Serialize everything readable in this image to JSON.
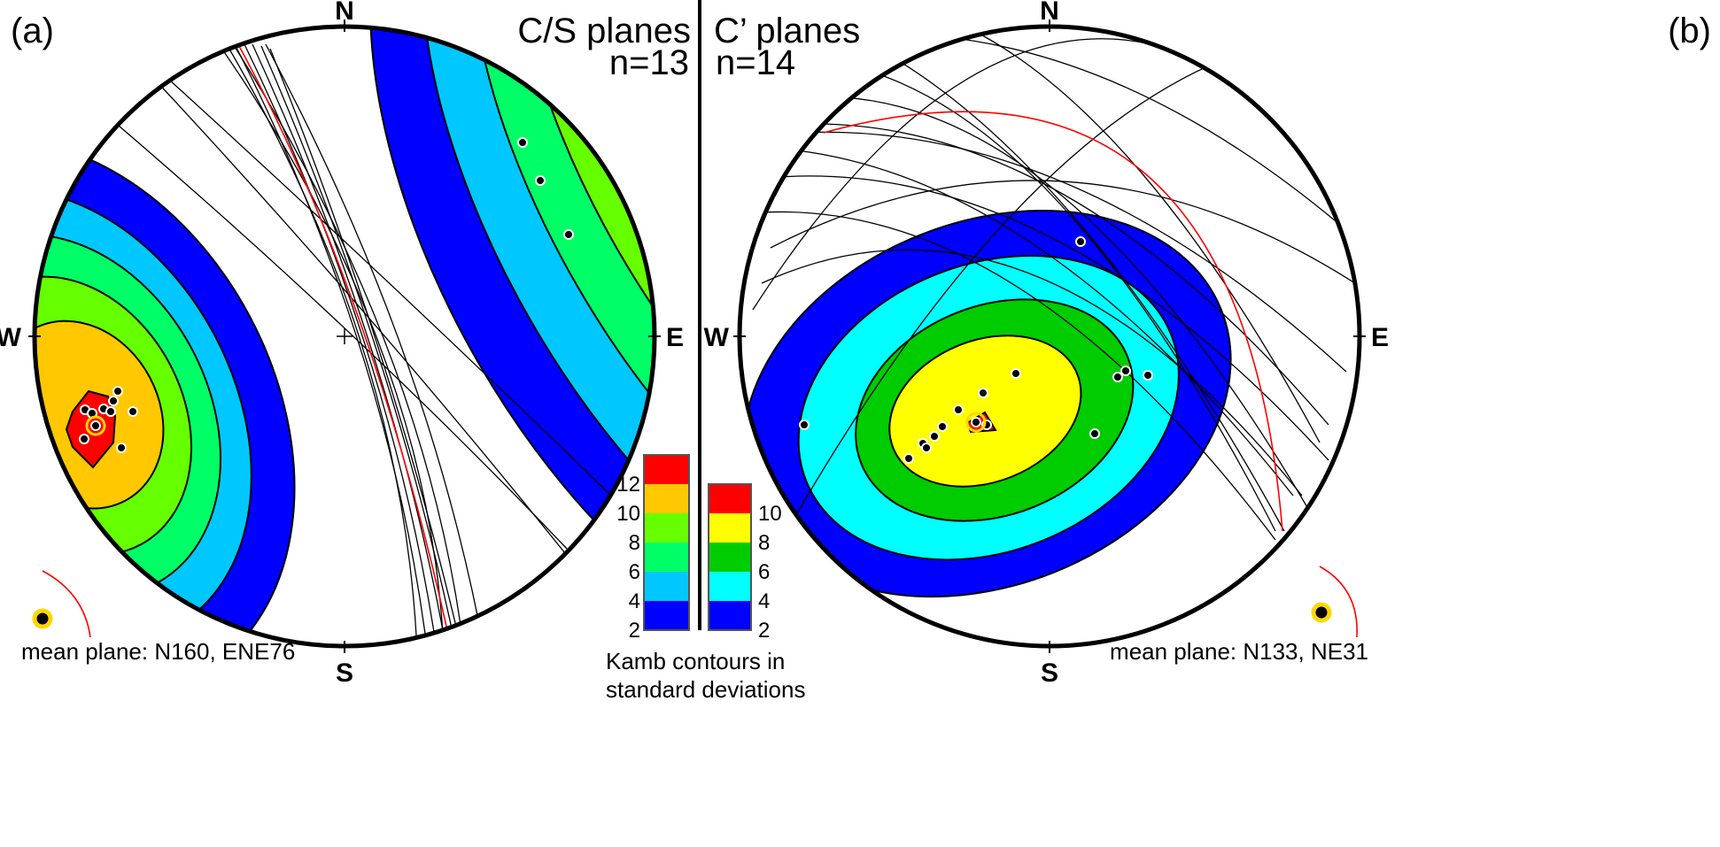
{
  "panel_a": {
    "label": "(a)",
    "title": "C/S planes",
    "n": "n=13",
    "directions": {
      "N": "N",
      "S": "S",
      "W": "W",
      "E": "E"
    },
    "mean_plane": "mean plane: N160, ENE76"
  },
  "panel_b": {
    "label": "(b)",
    "title": "C’ planes",
    "n": "n=14",
    "directions": {
      "N": "N",
      "S": "S",
      "W": "W",
      "E": "E"
    },
    "mean_plane": "mean plane: N133, NE31"
  },
  "legend_a": {
    "ticks": [
      "2",
      "4",
      "6",
      "8",
      "10",
      "12"
    ],
    "colors": [
      "#0000ff",
      "#00c8ff",
      "#00ff66",
      "#66ff00",
      "#ffc800",
      "#ff0000"
    ]
  },
  "legend_b": {
    "ticks": [
      "2",
      "4",
      "6",
      "8",
      "10"
    ],
    "colors": [
      "#0000ff",
      "#00ffff",
      "#00cc00",
      "#ffff00",
      "#ff0000"
    ]
  },
  "legend_caption": {
    "line1": "Kamb contours in",
    "line2": "standard deviations"
  },
  "colors": {
    "mean_circle": "#ff0000",
    "mean_pole": "#ffd700"
  }
}
